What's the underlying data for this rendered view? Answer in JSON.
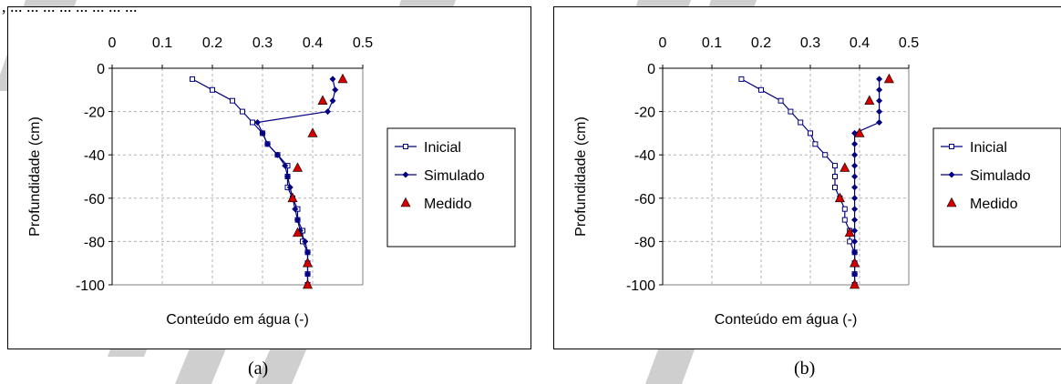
{
  "fragment_text": ", ... ... ... ... ... ... ... ...",
  "chart_data": [
    {
      "type": "line",
      "panel_caption": "(a)",
      "xlabel": "Conteúdo em água (-)",
      "ylabel": "Profundidade (cm)",
      "xlim": [
        0,
        0.5
      ],
      "ylim": [
        -100,
        0
      ],
      "xticks": [
        "0",
        "0.1",
        "0.2",
        "0.3",
        "0.4",
        "0.5"
      ],
      "yticks": [
        "0",
        "-20",
        "-40",
        "-60",
        "-80",
        "-100"
      ],
      "grid": true,
      "x_axis_position": "top",
      "legend_position": "right",
      "series": [
        {
          "name": "Inicial",
          "marker": "square-open",
          "color": "#000080",
          "x": [
            0.16,
            0.2,
            0.24,
            0.26,
            0.28,
            0.3,
            0.31,
            0.33,
            0.35,
            0.35,
            0.35,
            0.36,
            0.37,
            0.37,
            0.38,
            0.38,
            0.39,
            0.39,
            0.39,
            0.39
          ],
          "y": [
            -5,
            -10,
            -15,
            -20,
            -25,
            -30,
            -35,
            -40,
            -45,
            -50,
            -55,
            -60,
            -65,
            -70,
            -75,
            -80,
            -85,
            -90,
            -95,
            -100
          ]
        },
        {
          "name": "Simulado",
          "marker": "diamond-filled",
          "color": "#000080",
          "x": [
            0.44,
            0.445,
            0.44,
            0.43,
            0.29,
            0.3,
            0.31,
            0.33,
            0.345,
            0.35,
            0.355,
            0.36,
            0.365,
            0.37,
            0.375,
            0.385,
            0.39,
            0.39,
            0.39,
            0.39
          ],
          "y": [
            -5,
            -10,
            -15,
            -20,
            -25,
            -30,
            -35,
            -40,
            -45,
            -50,
            -55,
            -60,
            -65,
            -70,
            -75,
            -80,
            -85,
            -90,
            -95,
            -100
          ]
        },
        {
          "name": "Medido",
          "marker": "triangle",
          "color": "#d40000",
          "x": [
            0.46,
            0.42,
            0.4,
            0.37,
            0.36,
            0.37,
            0.39,
            0.39
          ],
          "y": [
            -5,
            -15,
            -30,
            -46,
            -60,
            -76,
            -90,
            -100
          ]
        }
      ]
    },
    {
      "type": "line",
      "panel_caption": "(b)",
      "xlabel": "Conteúdo em água (-)",
      "ylabel": "Profundidade (cm)",
      "xlim": [
        0,
        0.5
      ],
      "ylim": [
        -100,
        0
      ],
      "xticks": [
        "0",
        "0.1",
        "0.2",
        "0.3",
        "0.4",
        "0.5"
      ],
      "yticks": [
        "0",
        "-20",
        "-40",
        "-60",
        "-80",
        "-100"
      ],
      "grid": true,
      "x_axis_position": "top",
      "legend_position": "right",
      "series": [
        {
          "name": "Inicial",
          "marker": "square-open",
          "color": "#000080",
          "x": [
            0.16,
            0.2,
            0.24,
            0.26,
            0.28,
            0.3,
            0.31,
            0.33,
            0.35,
            0.35,
            0.35,
            0.36,
            0.37,
            0.37,
            0.38,
            0.38,
            0.39,
            0.39,
            0.39,
            0.39
          ],
          "y": [
            -5,
            -10,
            -15,
            -20,
            -25,
            -30,
            -35,
            -40,
            -45,
            -50,
            -55,
            -60,
            -65,
            -70,
            -75,
            -80,
            -85,
            -90,
            -95,
            -100
          ]
        },
        {
          "name": "Simulado",
          "marker": "diamond-filled",
          "color": "#000080",
          "x": [
            0.44,
            0.44,
            0.44,
            0.44,
            0.44,
            0.39,
            0.39,
            0.39,
            0.39,
            0.39,
            0.39,
            0.39,
            0.39,
            0.39,
            0.39,
            0.39,
            0.39,
            0.39,
            0.39,
            0.39
          ],
          "y": [
            -5,
            -10,
            -15,
            -20,
            -25,
            -30,
            -35,
            -40,
            -45,
            -50,
            -55,
            -60,
            -65,
            -70,
            -75,
            -80,
            -85,
            -90,
            -95,
            -100
          ]
        },
        {
          "name": "Medido",
          "marker": "triangle",
          "color": "#d40000",
          "x": [
            0.46,
            0.42,
            0.4,
            0.37,
            0.36,
            0.38,
            0.39,
            0.39
          ],
          "y": [
            -5,
            -15,
            -30,
            -46,
            -60,
            -76,
            -90,
            -100
          ]
        }
      ]
    }
  ]
}
